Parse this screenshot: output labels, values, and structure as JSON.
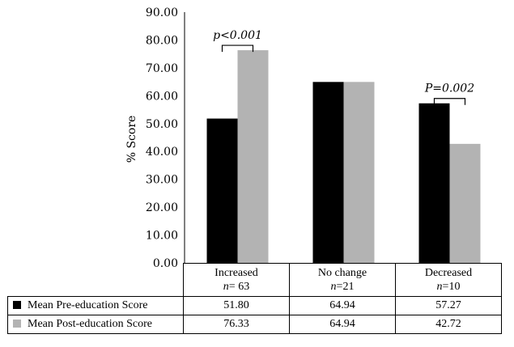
{
  "chart_data": {
    "type": "bar",
    "ylabel": "% Score",
    "ylim": [
      0,
      90
    ],
    "yticks": [
      "0.00",
      "10.00",
      "20.00",
      "30.00",
      "40.00",
      "50.00",
      "60.00",
      "70.00",
      "80.00",
      "90.00"
    ],
    "categories": [
      {
        "name": "Increased",
        "n_prefix": "n",
        "n_value": "= 63"
      },
      {
        "name": "No change",
        "n_prefix": "n",
        "n_value": "=21"
      },
      {
        "name": "Decreased",
        "n_prefix": "n",
        "n_value": "=10"
      }
    ],
    "series": [
      {
        "name": "Mean Pre-education Score",
        "color": "#000000",
        "values": [
          51.8,
          64.94,
          57.27
        ],
        "labels": [
          "51.80",
          "64.94",
          "57.27"
        ]
      },
      {
        "name": "Mean Post-education Score",
        "color": "#b3b3b3",
        "values": [
          76.33,
          64.94,
          42.72
        ],
        "labels": [
          "76.33",
          "64.94",
          "42.72"
        ]
      }
    ],
    "annotations": [
      {
        "category_index": 0,
        "text": "p<0.001"
      },
      {
        "category_index": 2,
        "text": "P=0.002"
      }
    ],
    "grid": false,
    "legend": "table below chart"
  }
}
